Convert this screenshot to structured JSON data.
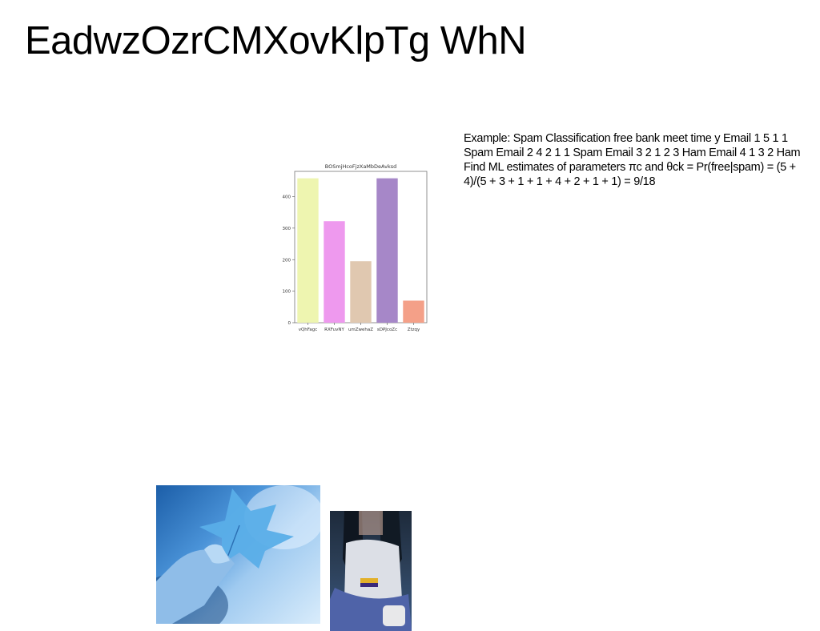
{
  "title": "EadwzOzrCMXovKlpTg WhN",
  "text_block": "Example: Spam Classification free bank meet time y Email 1 5 1 1 Spam Email 2 4 2 1 1 Spam Email 3 2 1 2 3 Ham Email 4 1 3 2 Ham Find ML estimates of parameters πc and θck = Pr(free|spam) = (5 + 4)/(5 + 3 + 1 + 1 + 4 + 2 + 1 + 1) = 9/18",
  "chart_data": {
    "type": "bar",
    "title": "BOSmjHcoFjzXaMbDeAvksd",
    "categories": [
      "vQhFagc",
      "RXFuvNY",
      "umZwehaZ",
      "sDPJcoZc",
      "Ztzqy"
    ],
    "values": [
      458,
      322,
      195,
      458,
      70
    ],
    "colors": [
      "#eef5b0",
      "#ee99ee",
      "#e0c8b0",
      "#a687c8",
      "#f4a088"
    ],
    "ylim": [
      0,
      480
    ],
    "yticks": [
      0,
      100,
      200,
      300,
      400
    ],
    "xlabel": "",
    "ylabel": "",
    "grid": false
  },
  "images": [
    {
      "name": "blue-leaf-hand-photo"
    },
    {
      "name": "person-with-cup-photo"
    }
  ]
}
